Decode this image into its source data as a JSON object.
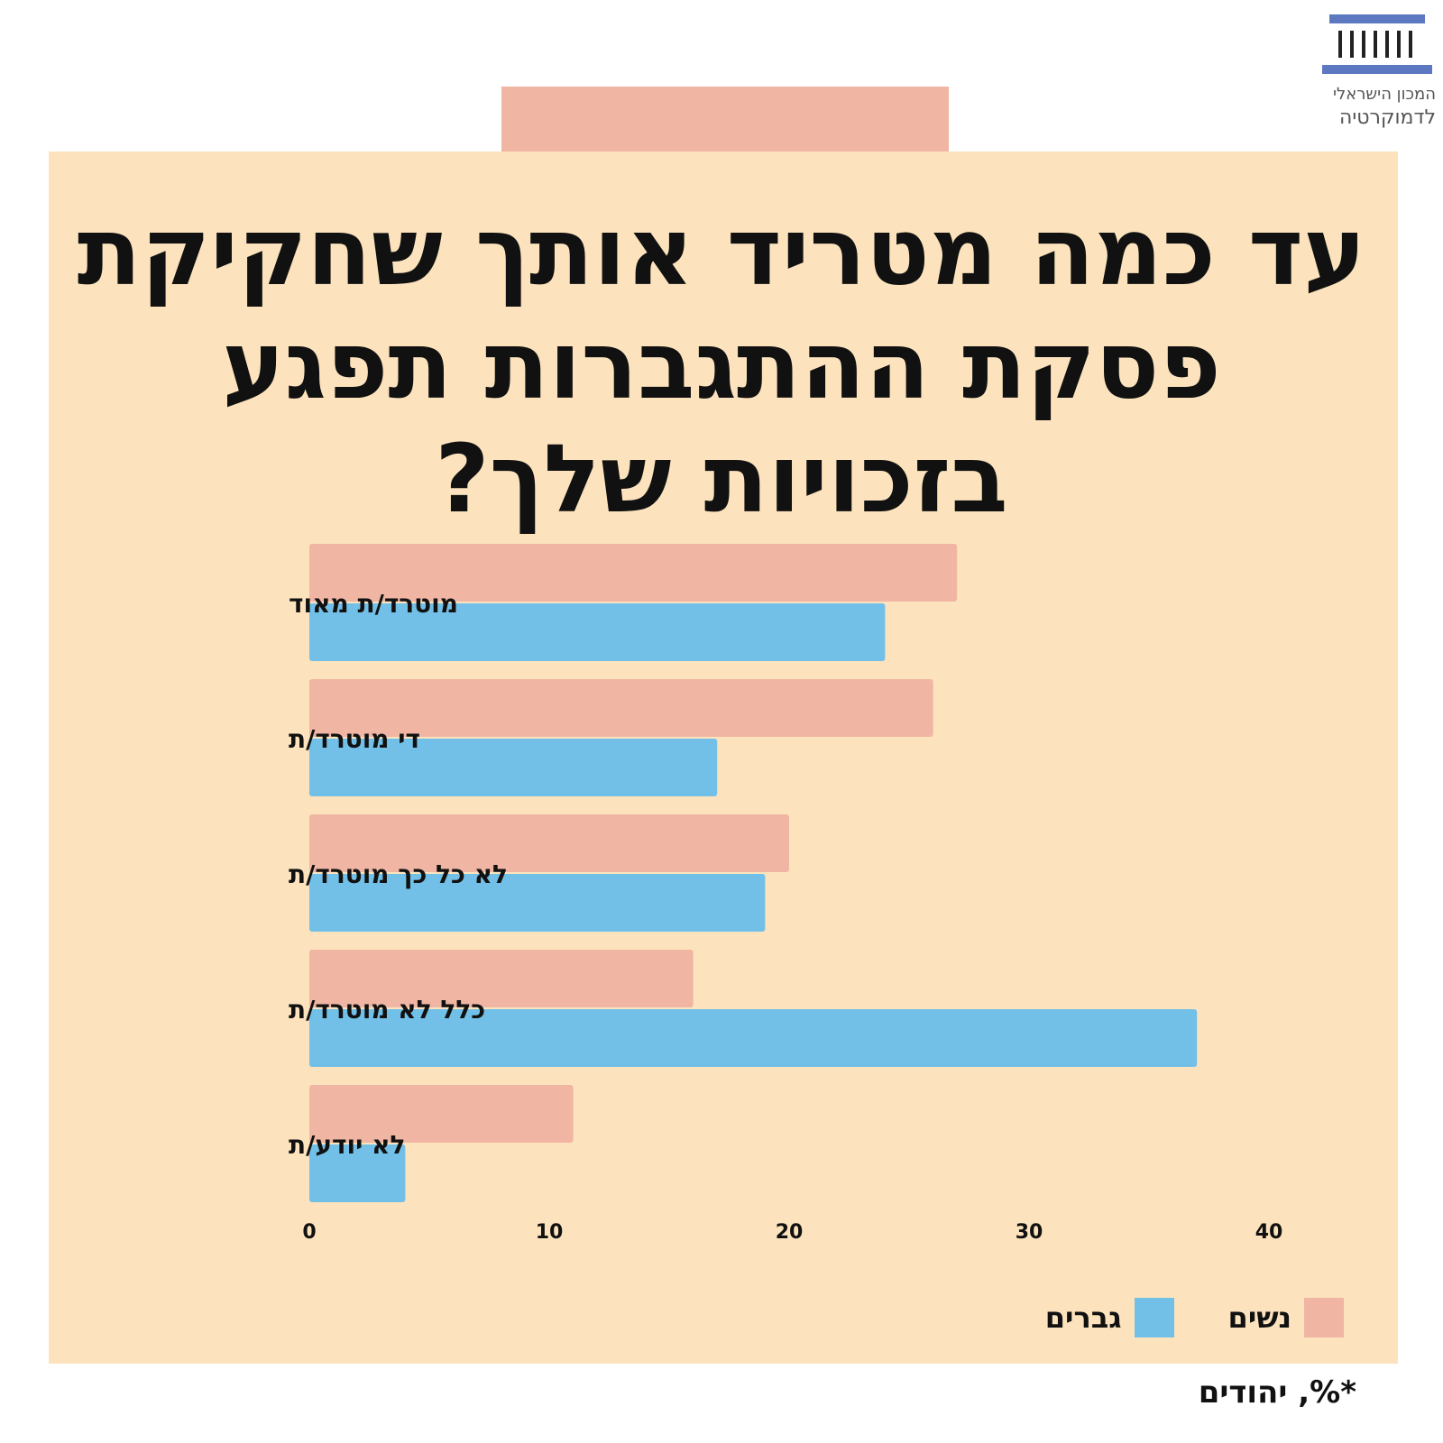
{
  "logo": {
    "icon": "institute-building-icon",
    "line1": "המכון הישראלי",
    "line2": "לדמוקרטיה",
    "color": "#5b78c0"
  },
  "colors": {
    "women": "#f0b5a3",
    "men": "#72c0e8",
    "panel": "#fce3bd"
  },
  "chart_data": {
    "type": "bar",
    "orientation": "horizontal",
    "title": "עד כמה מטריד אותך שחקיקת פסקת ההתגברות תפגע בזכויות שלך?",
    "title_lines": [
      "עד כמה מטריד אותך שחקיקת",
      "פסקת ההתגברות תפגע",
      "בזכויות שלך?"
    ],
    "categories": [
      "מוטרד/ת מאוד",
      "די מוטרד/ת",
      "לא כל כך מוטרד/ת",
      "כלל לא מוטרד/ת",
      "לא יודע/ת"
    ],
    "series": [
      {
        "name": "נשים",
        "color": "#f0b5a3",
        "values": [
          27,
          26,
          20,
          16,
          11
        ]
      },
      {
        "name": "גברים",
        "color": "#72c0e8",
        "values": [
          24,
          17,
          19,
          37,
          4
        ]
      }
    ],
    "xlim": [
      0,
      40
    ],
    "xticks": [
      "0",
      "10",
      "20",
      "30",
      "40"
    ],
    "grid": false,
    "legend_position": "bottom-right",
    "footnote": "*%, יהודים"
  }
}
